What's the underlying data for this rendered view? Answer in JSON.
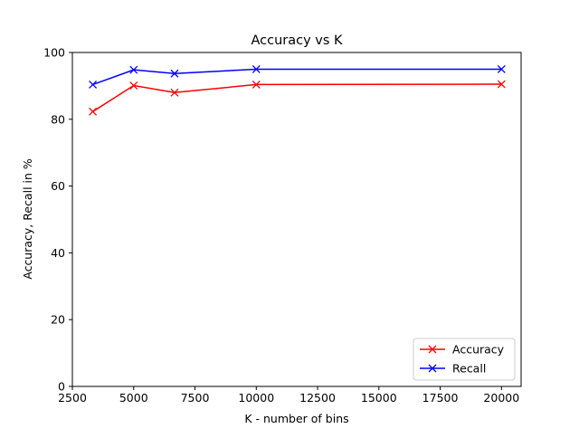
{
  "chart_data": {
    "type": "line",
    "title": "Accuracy vs K",
    "xlabel": "K - number of bins",
    "ylabel": "Accuracy, Recall in %",
    "xlim": [
      2500,
      20800
    ],
    "ylim": [
      0,
      100
    ],
    "xticks": [
      2500,
      5000,
      7500,
      10000,
      12500,
      15000,
      17500,
      20000
    ],
    "yticks": [
      0,
      20,
      40,
      60,
      80,
      100
    ],
    "grid": false,
    "legend_position": "lower-right",
    "marker": "x",
    "x": [
      3333,
      5000,
      6667,
      10000,
      20000
    ],
    "series": [
      {
        "name": "Accuracy",
        "color": "#ff0000",
        "values": [
          82.3,
          90.1,
          88.0,
          90.4,
          90.5
        ]
      },
      {
        "name": "Recall",
        "color": "#0000ff",
        "values": [
          90.4,
          94.8,
          93.7,
          95.0,
          95.0
        ]
      }
    ]
  }
}
